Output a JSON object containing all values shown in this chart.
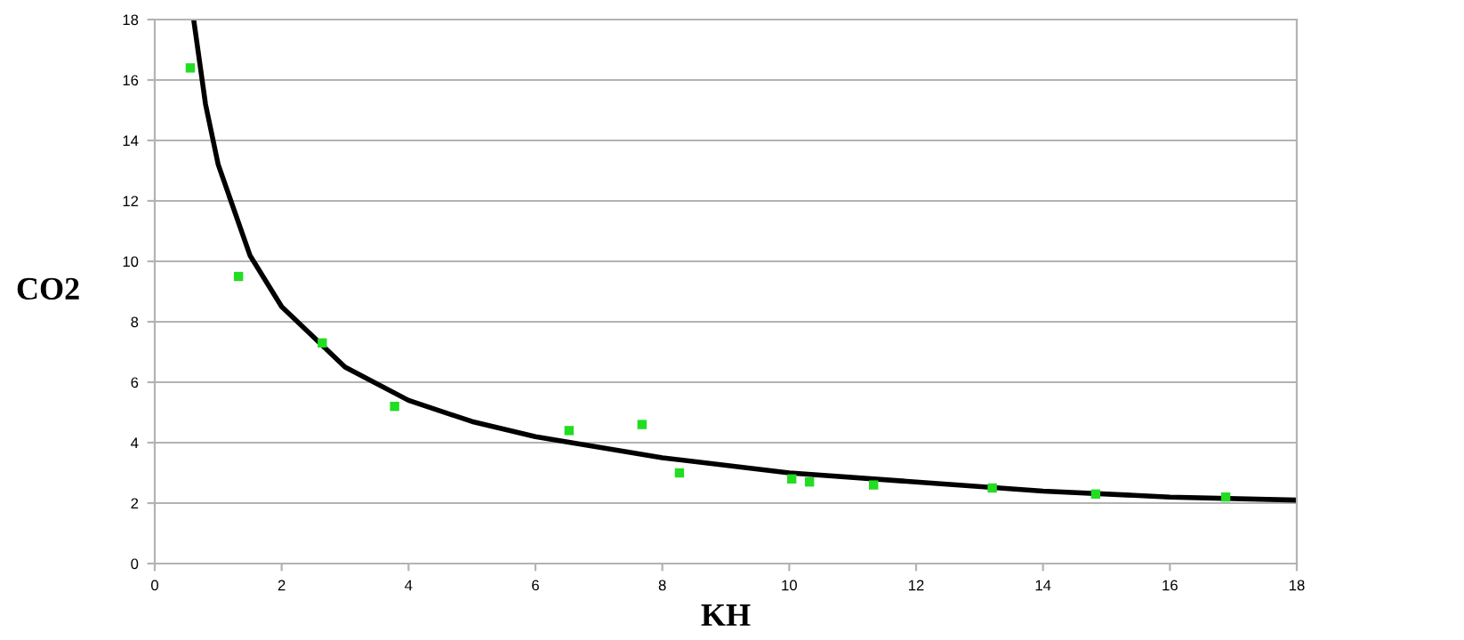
{
  "chart_data": {
    "type": "scatter",
    "xlabel": "KH",
    "ylabel": "CO2",
    "xlim": [
      0,
      18
    ],
    "ylim": [
      0,
      18
    ],
    "xticks": [
      0,
      2,
      4,
      6,
      8,
      10,
      12,
      14,
      16,
      18
    ],
    "yticks": [
      0,
      2,
      4,
      6,
      8,
      10,
      12,
      14,
      16,
      18
    ],
    "grid": "y",
    "series": [
      {
        "marker": "square",
        "color": "#22dd22",
        "x": [
          0.56,
          1.32,
          2.64,
          3.78,
          6.53,
          7.68,
          8.27,
          10.04,
          10.32,
          11.33,
          13.2,
          14.83,
          16.88
        ],
        "values": [
          16.4,
          9.5,
          7.3,
          5.2,
          4.4,
          4.6,
          3.0,
          2.8,
          2.7,
          2.6,
          2.5,
          2.3,
          2.2
        ]
      },
      {
        "type": "line",
        "color": "#000000",
        "x": [
          0.62,
          0.8,
          1,
          1.5,
          2,
          3,
          4,
          5,
          6,
          8,
          10,
          12,
          14,
          16,
          18
        ],
        "values": [
          17.9,
          15.2,
          13.2,
          10.2,
          8.5,
          6.5,
          5.4,
          4.7,
          4.2,
          3.5,
          3.0,
          2.7,
          2.4,
          2.2,
          2.1
        ]
      }
    ]
  }
}
